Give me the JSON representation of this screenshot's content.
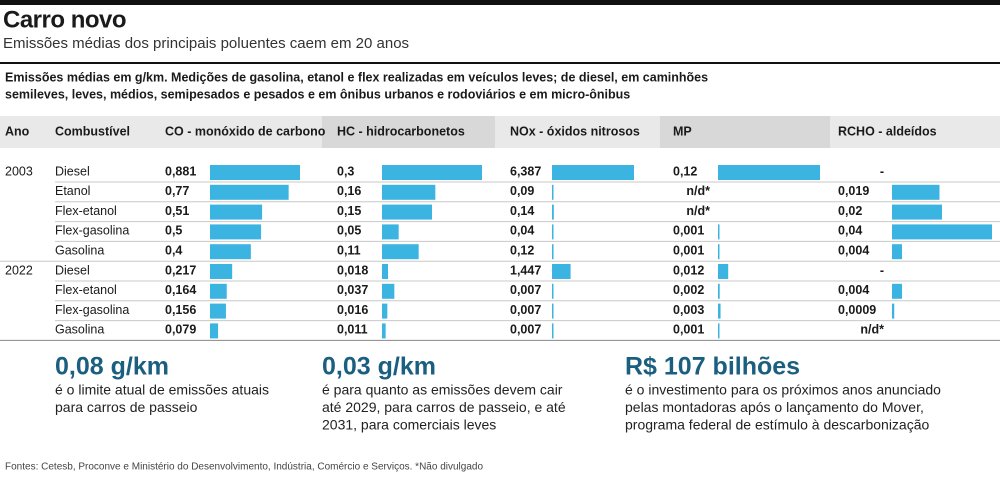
{
  "header": {
    "title": "Carro novo",
    "subtitle": "Emissões médias dos principais poluentes caem em 20 anos"
  },
  "note": [
    "Emissões médias em g/km. Medições de gasolina, etanol e flex realizadas em veículos leves; de diesel, em caminhões",
    "semileves, leves, médios, semipesados e pesados e em ônibus urbanos e rodoviários e em micro-ônibus"
  ],
  "table": {
    "columns": [
      "Ano",
      "Combustível",
      "CO - monóxido de carbono",
      "HC - hidrocarbonetos",
      "NOx - óxidos nitrosos",
      "MP",
      "RCHO - aldeídos"
    ],
    "bar_color": "#3cb4e2",
    "groups": [
      {
        "year": "2003",
        "rows": [
          {
            "fuel": "Diesel",
            "cells": [
              {
                "value": 0.881,
                "label": "0,881"
              },
              {
                "value": 0.3,
                "label": "0,3"
              },
              {
                "value": 6.387,
                "label": "6,387"
              },
              {
                "value": 0.12,
                "label": "0,12"
              },
              "-"
            ]
          },
          {
            "fuel": "Etanol",
            "cells": [
              {
                "value": 0.77,
                "label": "0,77"
              },
              {
                "value": 0.16,
                "label": "0,16"
              },
              {
                "value": 0.09,
                "label": "0,09"
              },
              "n/d*",
              {
                "value": 0.019,
                "label": "0,019"
              }
            ]
          },
          {
            "fuel": "Flex-etanol",
            "cells": [
              {
                "value": 0.51,
                "label": "0,51"
              },
              {
                "value": 0.15,
                "label": "0,15"
              },
              {
                "value": 0.14,
                "label": "0,14"
              },
              "n/d*",
              {
                "value": 0.02,
                "label": "0,02"
              }
            ]
          },
          {
            "fuel": "Flex-gasolina",
            "cells": [
              {
                "value": 0.5,
                "label": "0,5"
              },
              {
                "value": 0.05,
                "label": "0,05"
              },
              {
                "value": 0.04,
                "label": "0,04"
              },
              {
                "value": 0.001,
                "label": "0,001"
              },
              {
                "value": 0.04,
                "label": "0,04"
              }
            ]
          },
          {
            "fuel": "Gasolina",
            "cells": [
              {
                "value": 0.4,
                "label": "0,4"
              },
              {
                "value": 0.11,
                "label": "0,11"
              },
              {
                "value": 0.12,
                "label": "0,12"
              },
              {
                "value": 0.001,
                "label": "0,001"
              },
              {
                "value": 0.004,
                "label": "0,004"
              }
            ]
          }
        ]
      },
      {
        "year": "2022",
        "rows": [
          {
            "fuel": "Diesel",
            "cells": [
              {
                "value": 0.217,
                "label": "0,217"
              },
              {
                "value": 0.018,
                "label": "0,018"
              },
              {
                "value": 1.447,
                "label": "1,447"
              },
              {
                "value": 0.012,
                "label": "0,012"
              },
              "-"
            ]
          },
          {
            "fuel": "Flex-etanol",
            "cells": [
              {
                "value": 0.164,
                "label": "0,164"
              },
              {
                "value": 0.037,
                "label": "0,037"
              },
              {
                "value": 0.007,
                "label": "0,007"
              },
              {
                "value": 0.002,
                "label": "0,002"
              },
              {
                "value": 0.004,
                "label": "0,004"
              }
            ]
          },
          {
            "fuel": "Flex-gasolina",
            "cells": [
              {
                "value": 0.156,
                "label": "0,156"
              },
              {
                "value": 0.016,
                "label": "0,016"
              },
              {
                "value": 0.007,
                "label": "0,007"
              },
              {
                "value": 0.003,
                "label": "0,003"
              },
              {
                "value": 0.0009,
                "label": "0,0009"
              }
            ]
          },
          {
            "fuel": "Gasolina",
            "cells": [
              {
                "value": 0.079,
                "label": "0,079"
              },
              {
                "value": 0.011,
                "label": "0,011"
              },
              {
                "value": 0.007,
                "label": "0,007"
              },
              {
                "value": 0.001,
                "label": "0,001"
              },
              "n/d*"
            ]
          }
        ]
      }
    ]
  },
  "highlights": [
    {
      "figure": "0,08 g/km",
      "text": [
        "é o limite atual de emissões atuais",
        "para carros de passeio"
      ]
    },
    {
      "figure": "0,03 g/km",
      "text": [
        "é para quanto as emissões devem cair",
        "até 2029, para carros de passeio, e até",
        "2031, para comerciais leves"
      ]
    },
    {
      "figure": "R$ 107 bilhões",
      "text": [
        "é o investimento para os próximos anos anunciado",
        "pelas montadoras após o lançamento do Mover,",
        "programa federal de estímulo à descarbonização"
      ]
    }
  ],
  "source": "Fontes: Cetesb, Proconve e Ministério do Desenvolvimento, Indústria, Comércio e Serviços. *Não divulgado"
}
